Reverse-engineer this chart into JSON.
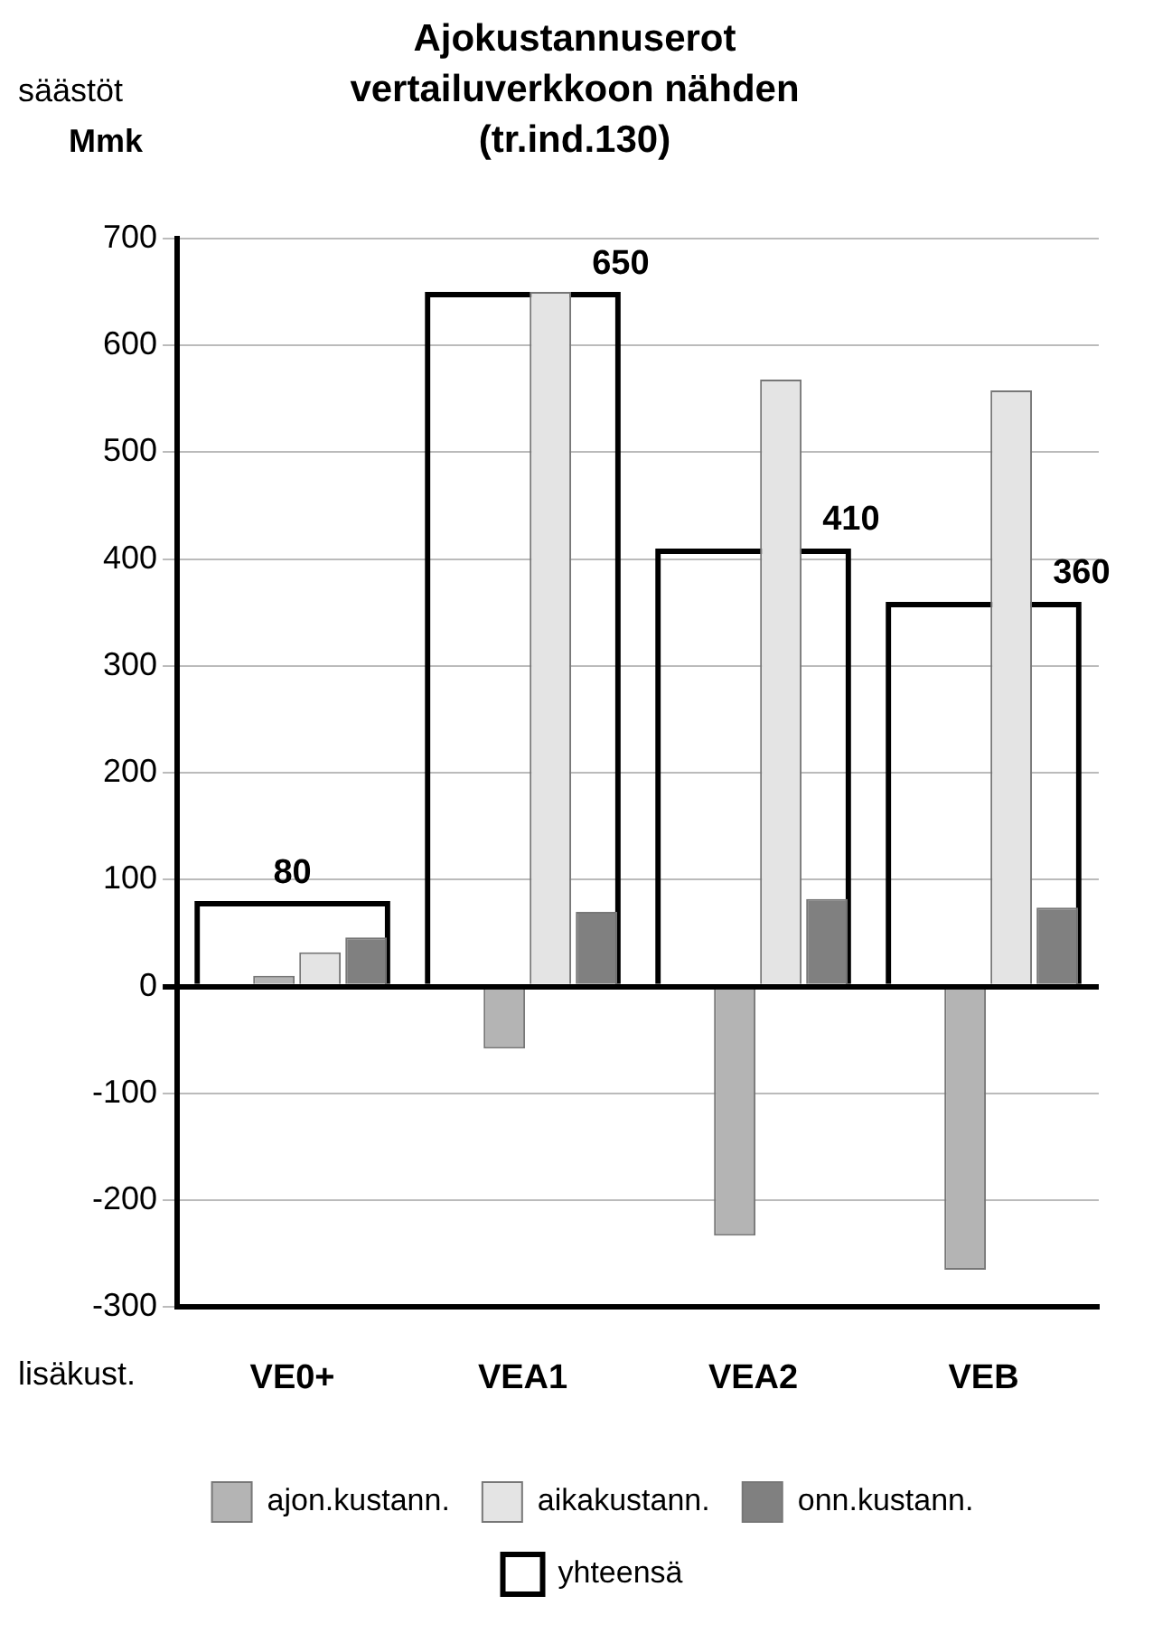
{
  "chart_data": {
    "type": "bar",
    "title": "Ajokustannuserot vertailuverkkoon nähden (tr.ind.130)",
    "annotations": [
      "säästöt",
      "Mmk",
      "lisäkust."
    ],
    "categories": [
      "VE0+",
      "VEA1",
      "VEA2",
      "VEB"
    ],
    "series": [
      {
        "name": "ajon.kustann.",
        "color": "#b4b4b4",
        "values": [
          10,
          -58,
          -233,
          -265
        ]
      },
      {
        "name": "aikakustann.",
        "color": "#e4e4e4",
        "values": [
          32,
          650,
          568,
          558
        ]
      },
      {
        "name": "onn.kustann.",
        "color": "#808080",
        "values": [
          46,
          70,
          82,
          74
        ]
      },
      {
        "name": "yhteensä",
        "color": "#000000",
        "values": [
          80,
          650,
          410,
          360
        ],
        "value_labels": [
          "80",
          "650",
          "410",
          "360"
        ]
      }
    ],
    "ylim": [
      -300,
      700
    ],
    "yticks": [
      -300,
      -200,
      -100,
      0,
      100,
      200,
      300,
      400,
      500,
      600,
      700
    ],
    "grid": "y",
    "legend": "bottom"
  }
}
